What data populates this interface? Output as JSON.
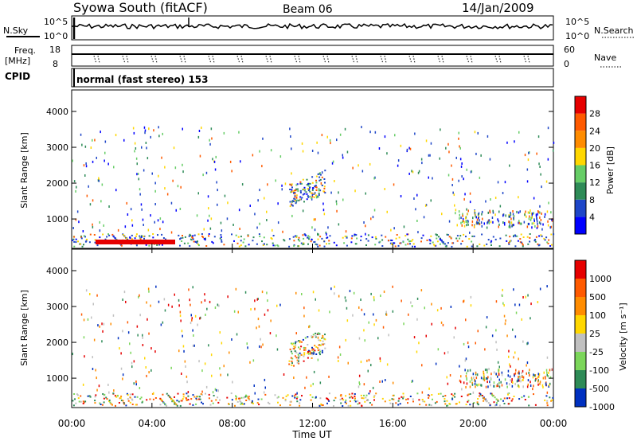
{
  "header": {
    "station": "Syowa South (fitACF)",
    "beam": "Beam 06",
    "date": "14/Jan/2009"
  },
  "noise_panel": {
    "left_label": "N.Sky",
    "right_label": "N.Search",
    "tick_top": "10^5",
    "tick_bottom": "10^0"
  },
  "freq_panel": {
    "left_label_1": "Freq.",
    "left_label_2": "[MHz]",
    "right_label": "Nave",
    "left_ticks": [
      "18",
      "8"
    ],
    "right_ticks": [
      "60",
      "0"
    ]
  },
  "cpid_panel": {
    "label": "CPID",
    "mode": "normal (fast stereo) 153"
  },
  "chart_data": [
    {
      "type": "heatmap",
      "name": "power",
      "ylabel": "Slant Range [km]",
      "ylim": [
        180,
        4600
      ],
      "yticks": [
        "4000",
        "3000",
        "2000",
        "1000"
      ],
      "colorbar_label": "Power [dB]",
      "colorbar_ticks": [
        "28",
        "24",
        "20",
        "16",
        "12",
        "8",
        "4"
      ],
      "colors": [
        "#0000ff",
        "#1e46c8",
        "#2e8b57",
        "#66cd66",
        "#ffd700",
        "#ff8c00",
        "#ff5a00",
        "#e60000"
      ]
    },
    {
      "type": "heatmap",
      "name": "velocity",
      "ylabel": "Slant Range [km]",
      "ylim": [
        180,
        4600
      ],
      "yticks": [
        "4000",
        "3000",
        "2000",
        "1000"
      ],
      "colorbar_label": "Velocity [m s⁻¹]",
      "colorbar_ticks": [
        "1000",
        "500",
        "100",
        "25",
        "-25",
        "-100",
        "-500",
        "-1000"
      ],
      "colors": [
        "#0030c0",
        "#2e8b57",
        "#7bd65a",
        "#c0c0c0",
        "#ffd700",
        "#ff8c00",
        "#ff5a00",
        "#e60000"
      ],
      "xlabel": "Time UT",
      "xticks": [
        "00:00",
        "04:00",
        "08:00",
        "12:00",
        "16:00",
        "20:00",
        "00:00"
      ]
    }
  ]
}
